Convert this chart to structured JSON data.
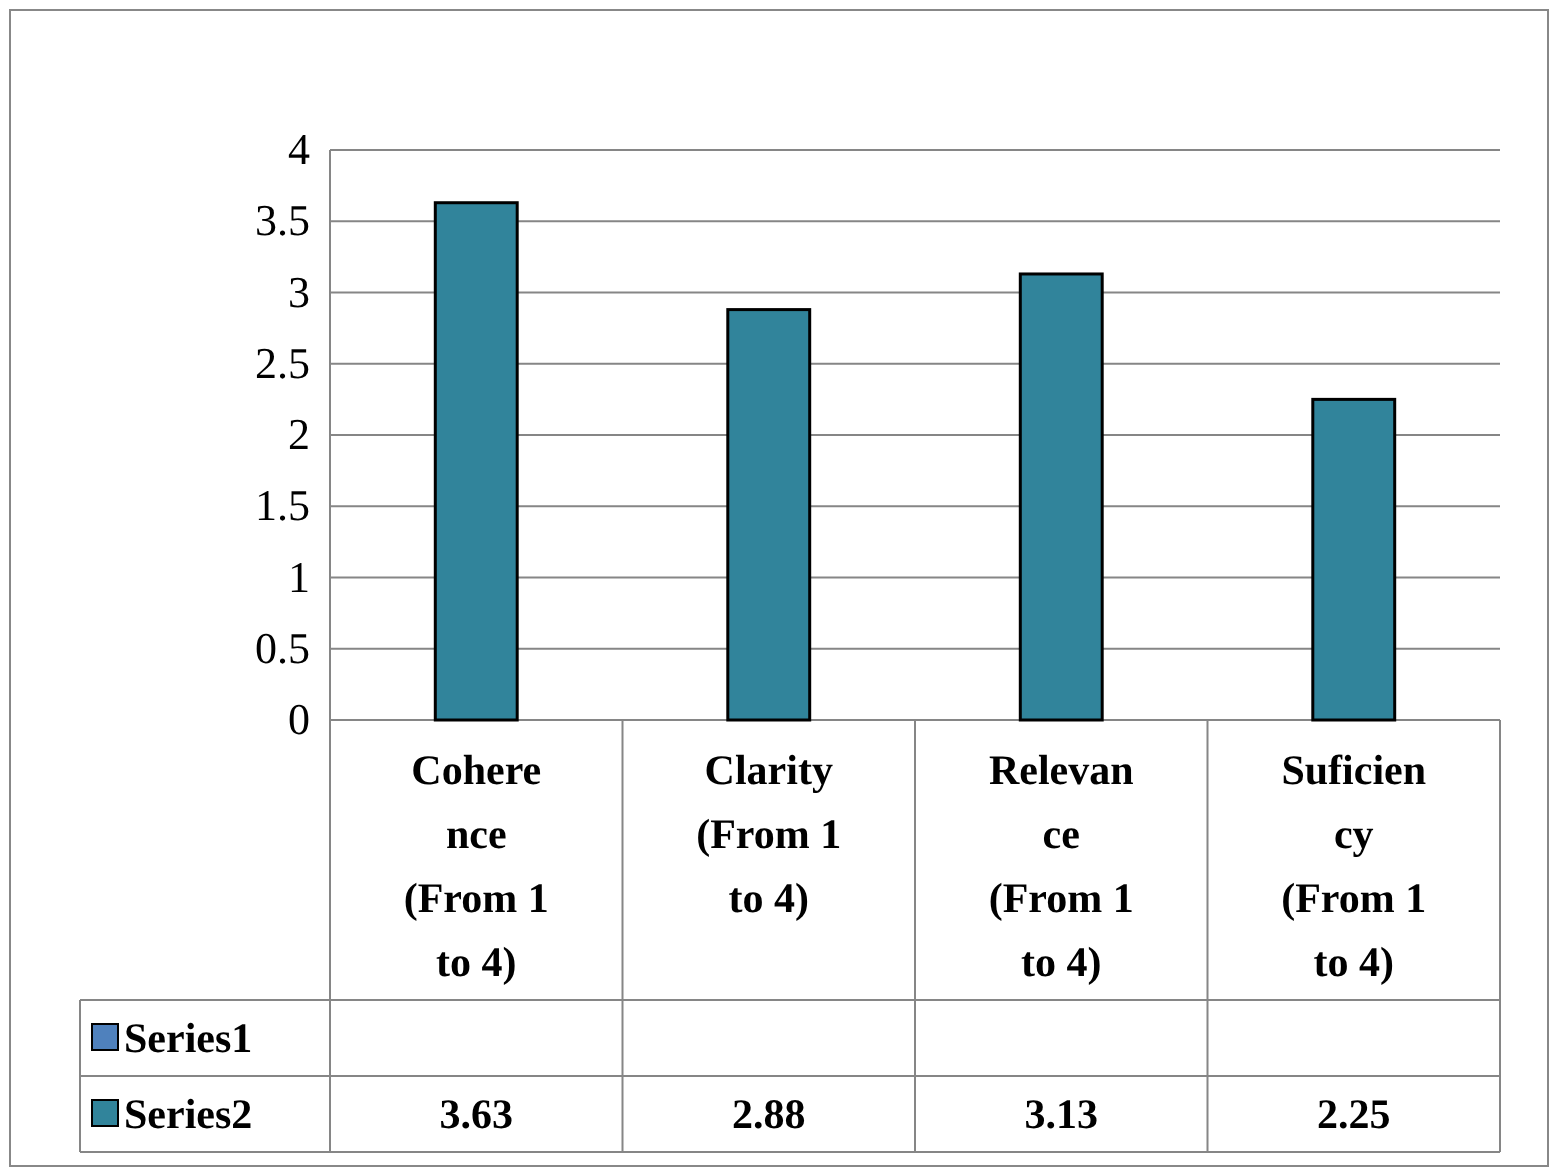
{
  "chart_data": {
    "type": "bar",
    "categories": [
      "Coherence (From 1 to 4)",
      "Clarity (From 1 to 4)",
      "Relevance (From 1 to 4)",
      "Suficiency (From 1 to 4)"
    ],
    "series": [
      {
        "name": "Series1",
        "color": "#4f81bd",
        "values": [
          null,
          null,
          null,
          null
        ]
      },
      {
        "name": "Series2",
        "color": "#31849b",
        "values": [
          3.63,
          2.88,
          3.13,
          2.25
        ]
      }
    ],
    "ylim": [
      0,
      4
    ],
    "yticks": [
      0,
      0.5,
      1,
      1.5,
      2,
      2.5,
      3,
      3.5,
      4
    ],
    "grid": "y",
    "legend": "bottom",
    "data_labels": true
  }
}
